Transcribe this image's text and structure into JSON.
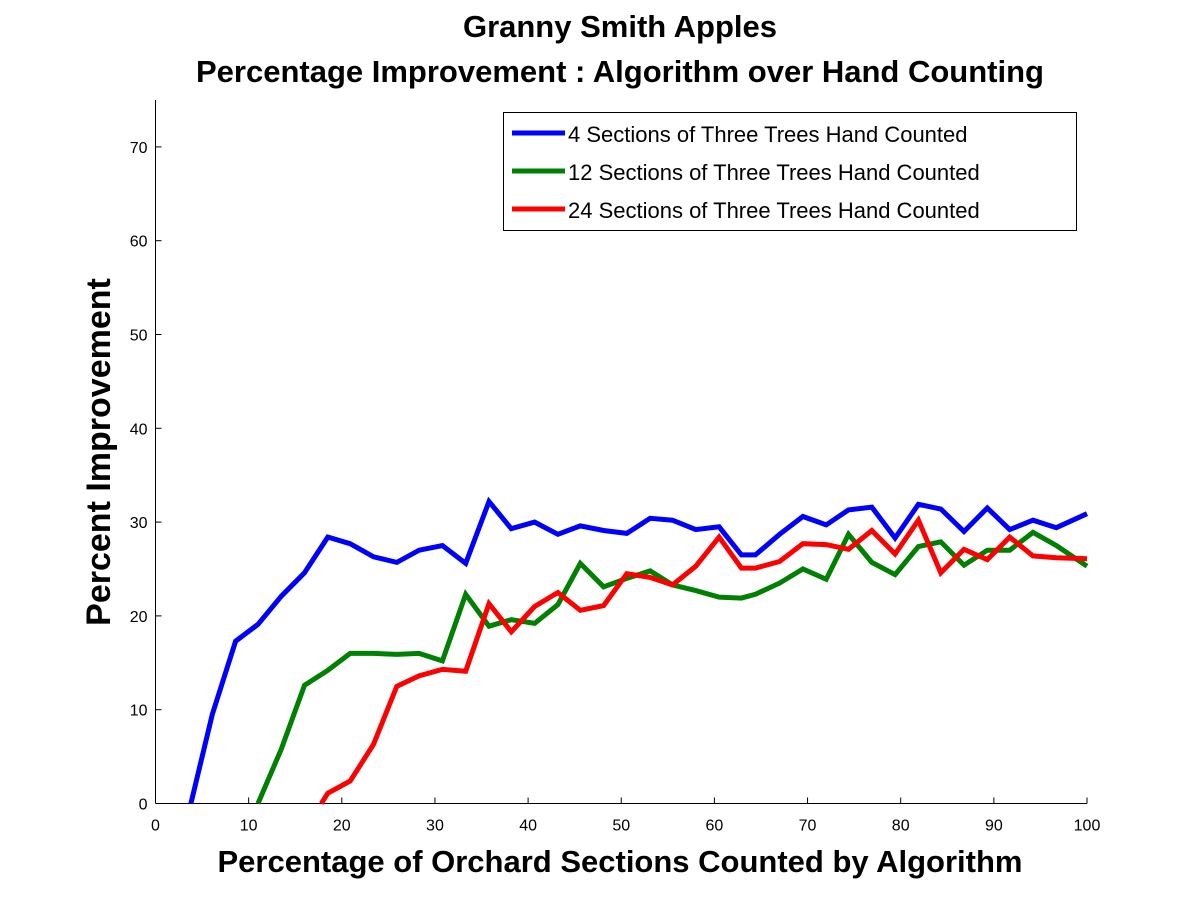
{
  "chart_data": {
    "type": "line",
    "title": "Granny Smith Apples",
    "subtitle": "Percentage Improvement : Algorithm over Hand Counting",
    "xlabel": "Percentage of Orchard Sections Counted by Algorithm",
    "ylabel": "Percent Improvement",
    "xlim": [
      0,
      100
    ],
    "ylim": [
      0,
      75
    ],
    "x_ticks": [
      0,
      10,
      20,
      30,
      40,
      50,
      60,
      70,
      80,
      90,
      100
    ],
    "y_ticks": [
      0,
      10,
      20,
      30,
      40,
      50,
      60,
      70
    ],
    "x_tick_labels": [
      "0",
      "10",
      "20",
      "30",
      "40",
      "50",
      "60",
      "70",
      "80",
      "90",
      "100"
    ],
    "y_tick_labels": [
      "0",
      "10",
      "20",
      "30",
      "40",
      "50",
      "60",
      "70"
    ],
    "grid": false,
    "legend_position": "top-right",
    "series": [
      {
        "name": "4 Sections of Three Trees Hand Counted",
        "color": "#0000ff",
        "x": [
          3.8,
          6.1,
          8.6,
          11.0,
          13.5,
          16.0,
          18.5,
          20.9,
          23.4,
          25.9,
          28.3,
          30.8,
          33.3,
          35.8,
          38.2,
          40.7,
          43.2,
          45.6,
          48.1,
          50.6,
          53.1,
          55.5,
          58.0,
          60.5,
          62.9,
          64.4,
          67.0,
          69.5,
          72.0,
          74.4,
          76.9,
          79.4,
          81.9,
          84.3,
          86.8,
          89.3,
          91.7,
          94.2,
          96.7,
          100.0
        ],
        "y": [
          0.0,
          9.5,
          17.3,
          19.1,
          22.1,
          24.6,
          28.4,
          27.7,
          26.3,
          25.7,
          27.0,
          27.5,
          25.6,
          32.2,
          29.3,
          30.0,
          28.7,
          29.6,
          29.1,
          28.8,
          30.4,
          30.2,
          29.2,
          29.5,
          26.5,
          26.5,
          28.7,
          30.6,
          29.7,
          31.3,
          31.6,
          28.3,
          31.9,
          31.4,
          29.0,
          31.5,
          29.2,
          30.2,
          29.4,
          30.9
        ]
      },
      {
        "name": "12 Sections of Three Trees Hand Counted",
        "color": "#008000",
        "x": [
          11.0,
          13.5,
          16.0,
          18.5,
          20.9,
          23.4,
          25.9,
          28.3,
          30.8,
          33.3,
          35.8,
          38.2,
          40.7,
          43.2,
          45.6,
          48.1,
          50.6,
          53.1,
          55.5,
          58.0,
          60.5,
          62.9,
          64.4,
          67.0,
          69.5,
          72.0,
          74.4,
          76.9,
          79.4,
          81.9,
          84.3,
          86.8,
          89.3,
          91.7,
          94.2,
          96.7,
          100.0
        ],
        "y": [
          0.0,
          5.8,
          12.6,
          14.2,
          16.0,
          16.0,
          15.9,
          16.0,
          15.2,
          22.3,
          18.9,
          19.6,
          19.2,
          21.2,
          25.6,
          23.1,
          24.0,
          24.8,
          23.3,
          22.7,
          22.0,
          21.9,
          22.3,
          23.5,
          25.0,
          23.9,
          28.7,
          25.7,
          24.4,
          27.4,
          27.9,
          25.4,
          27.0,
          27.0,
          28.9,
          27.5,
          25.3
        ]
      },
      {
        "name": "24 Sections of Three Trees Hand Counted",
        "color": "#ff0000",
        "x": [
          17.8,
          18.5,
          20.9,
          23.4,
          25.9,
          28.3,
          30.8,
          33.3,
          35.8,
          38.2,
          40.7,
          43.2,
          45.6,
          48.1,
          50.6,
          53.1,
          55.5,
          58.0,
          60.5,
          62.9,
          64.4,
          67.0,
          69.5,
          72.0,
          74.4,
          76.9,
          79.4,
          81.9,
          84.3,
          86.8,
          89.3,
          91.7,
          94.2,
          96.7,
          100.0
        ],
        "y": [
          0.0,
          1.1,
          2.4,
          6.3,
          12.5,
          13.6,
          14.3,
          14.1,
          21.3,
          18.3,
          21.0,
          22.5,
          20.6,
          21.1,
          24.5,
          24.1,
          23.3,
          25.3,
          28.4,
          25.1,
          25.1,
          25.8,
          27.7,
          27.6,
          27.1,
          29.1,
          26.6,
          30.2,
          24.6,
          27.1,
          26.0,
          28.4,
          26.4,
          26.2,
          26.1
        ]
      }
    ]
  }
}
